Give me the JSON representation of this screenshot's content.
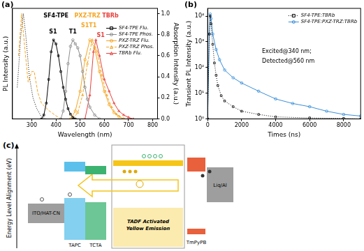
{
  "chart_data": [
    {
      "panel_label": "(a)",
      "type": "line",
      "x_label": "Wavelength (nm)",
      "y_label": "PL Intensity (a.u.)",
      "y2_label": "Absorption Intensity (a.u.)",
      "xlim": [
        220,
        820
      ],
      "xticks": [
        300,
        400,
        500,
        600,
        700,
        800
      ],
      "ylim": [
        0,
        1.4
      ],
      "yticks": [],
      "y2lim": [
        0,
        1.05
      ],
      "y2ticks": [
        {
          "value": 0,
          "label": "0.0"
        },
        0.2,
        0.4,
        0.6,
        0.8,
        {
          "value": 1,
          "label": "1.0"
        }
      ],
      "grid": false,
      "legend": "upper right",
      "series": [
        {
          "name": "SF4-TPE Flu.",
          "color": "#000000",
          "marker": "square",
          "line_style": "solid",
          "x": [
            340,
            350,
            360,
            370,
            380,
            390,
            400,
            410,
            420,
            430,
            440,
            450,
            460,
            470,
            480
          ],
          "values": [
            0,
            0.05,
            0.2,
            0.5,
            0.85,
            1,
            0.95,
            0.8,
            0.6,
            0.4,
            0.25,
            0.13,
            0.06,
            0.02,
            0
          ]
        },
        {
          "name": "SF4-TPE Phos.",
          "color": "#8c8c8c",
          "marker": "circle",
          "line_style": "solid",
          "x": [
            420,
            430,
            440,
            450,
            460,
            470,
            480,
            490,
            500,
            510,
            520,
            530,
            540,
            560,
            580
          ],
          "values": [
            0,
            0.1,
            0.35,
            0.7,
            0.92,
            1,
            0.95,
            0.9,
            0.8,
            0.6,
            0.4,
            0.25,
            0.15,
            0.05,
            0
          ]
        },
        {
          "name": "PXZ-TRZ Flu.",
          "color": "#f5a623",
          "marker": "circle",
          "line_style": "solid",
          "x": [
            460,
            480,
            500,
            520,
            540,
            560,
            580,
            600,
            620,
            640,
            660,
            680
          ],
          "values": [
            0,
            0.1,
            0.35,
            0.75,
            1,
            0.9,
            0.6,
            0.35,
            0.18,
            0.08,
            0.03,
            0
          ]
        },
        {
          "name": "PXZ-TRZ Phos.",
          "color": "#f5a623",
          "marker": "triangle",
          "line_style": "dashed",
          "x": [
            470,
            490,
            510,
            530,
            550,
            570,
            590,
            610,
            630,
            650,
            680
          ],
          "values": [
            0,
            0.08,
            0.3,
            0.7,
            1,
            0.85,
            0.55,
            0.3,
            0.15,
            0.06,
            0
          ]
        },
        {
          "name": "TBRb Flu.",
          "color": "#e8413c",
          "marker": "triangle",
          "line_style": "solid",
          "x": [
            520,
            540,
            555,
            565,
            580,
            600,
            620,
            640,
            660,
            680,
            700,
            720
          ],
          "values": [
            0,
            0.3,
            0.85,
            1,
            0.8,
            0.5,
            0.35,
            0.2,
            0.1,
            0.05,
            0.02,
            0
          ]
        },
        {
          "name": "SF4-TPE",
          "color": "#000000",
          "marker": "none",
          "line_style": "dotted",
          "axis": "y2",
          "x": [
            240,
            255,
            265,
            275,
            290,
            305,
            320,
            340,
            360
          ],
          "values": [
            0.3,
            0.8,
            1,
            0.8,
            0.4,
            0.2,
            0.1,
            0.02,
            0
          ]
        },
        {
          "name": "PXZ-TRZ",
          "color": "#f5a623",
          "marker": "none",
          "line_style": "dashed",
          "axis": "y2",
          "x": [
            245,
            258,
            270,
            285,
            300,
            310,
            325,
            340,
            370,
            400,
            420
          ],
          "values": [
            0.6,
            1,
            0.7,
            0.35,
            0.45,
            0.45,
            0.25,
            0.15,
            0.08,
            0.03,
            0
          ]
        }
      ],
      "annotations": [
        {
          "text": "SF4-TPE",
          "color": "#000000"
        },
        {
          "text": "PXZ-TRZ",
          "color": "#f5a623"
        },
        {
          "text": "TBRb",
          "color": "#e8413c"
        },
        {
          "text": "S1",
          "color": "#000000"
        },
        {
          "text": "T1",
          "color": "#000000"
        },
        {
          "text": "S1",
          "color": "#f5a623"
        },
        {
          "text": "T1",
          "color": "#f5a623"
        },
        {
          "text": "S1",
          "color": "#e8413c"
        }
      ]
    },
    {
      "panel_label": "(b)",
      "type": "line",
      "log": "y",
      "x_label": "Times (ns)",
      "y_label": "Transient PL Intensity (a.u.)",
      "xlim": [
        0,
        9000
      ],
      "xticks": [
        0,
        2000,
        4000,
        6000,
        8000
      ],
      "ylim": [
        1,
        20000
      ],
      "yticks": [
        {
          "value": 1,
          "label": "10⁰"
        },
        {
          "value": 10,
          "label": "10¹"
        },
        {
          "value": 100,
          "label": "10²"
        },
        {
          "value": 1000,
          "label": "10³"
        },
        {
          "value": 10000,
          "label": "10⁴"
        }
      ],
      "grid": false,
      "legend": "upper right",
      "series": [
        {
          "name": "SF4-TPE:TBRb",
          "color": "#000000",
          "marker": "square",
          "line_style": "dotted",
          "x": [
            0,
            100,
            150,
            200,
            300,
            400,
            500,
            600,
            800,
            1000,
            1500,
            2000,
            3000,
            4000,
            6000,
            8000,
            9000
          ],
          "values": [
            1,
            2000,
            10000,
            5000,
            800,
            150,
            50,
            20,
            8,
            5,
            3,
            2,
            1.5,
            1.2,
            1.1,
            1.05,
            1
          ]
        },
        {
          "name": "SF4-TPE:PXZ-TRZ:TBRb",
          "color": "#3a8fd8",
          "marker": "circle",
          "line_style": "solid",
          "x": [
            0,
            100,
            150,
            200,
            300,
            500,
            700,
            1000,
            1500,
            2000,
            3000,
            4000,
            5000,
            6000,
            7000,
            8000,
            9000
          ],
          "values": [
            1,
            2000,
            12000,
            8000,
            2000,
            500,
            200,
            80,
            40,
            25,
            12,
            6,
            4,
            3,
            2,
            1.5,
            1.3
          ]
        }
      ],
      "annotations": [
        {
          "text": "Excited@340 nm;",
          "color": "#000000"
        },
        {
          "text": "Detected@560 nm",
          "color": "#000000"
        }
      ]
    }
  ],
  "diagram": {
    "panel_label": "(c)",
    "y_label": "Energy Level Alignment (eV)",
    "layers": [
      {
        "label": "ITO/HAT-CN",
        "color": "#9e9e9e"
      },
      {
        "label": "TAPC",
        "color": "#5bc0eb"
      },
      {
        "label": "TCTA",
        "color": "#3cb371"
      },
      {
        "label": "TmPyPB",
        "color": "#e8603c"
      },
      {
        "label": "Liq/Al",
        "color": "#9e9e9e"
      }
    ],
    "emission": {
      "label": "TADF Activated Yellow Emission",
      "color": "#f5c518"
    }
  }
}
